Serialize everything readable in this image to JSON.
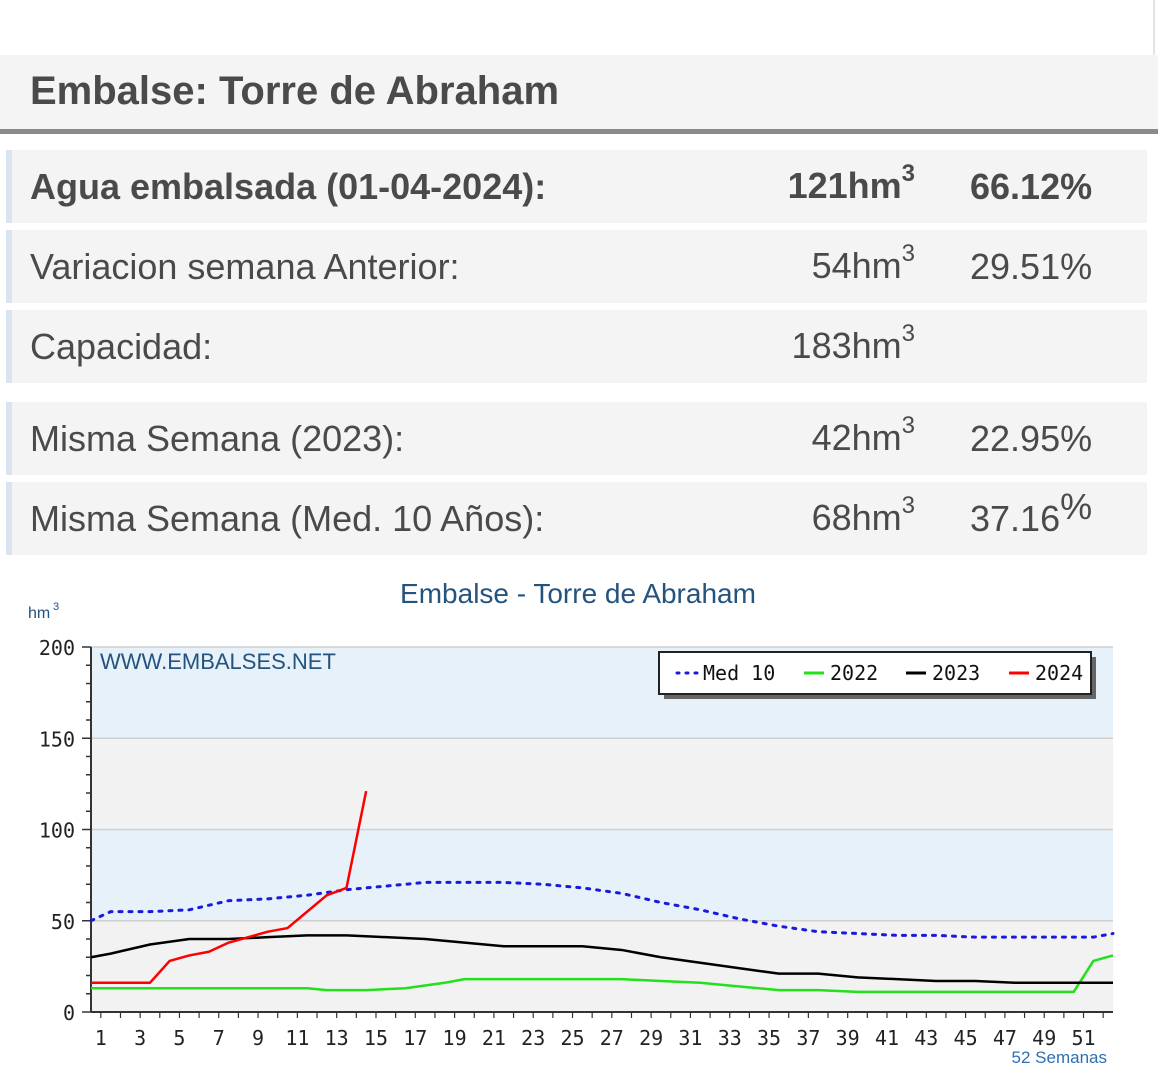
{
  "header": {
    "title": "Embalse: Torre de Abraham"
  },
  "rows": [
    {
      "label": "Agua embalsada (01-04-2024):",
      "value": "121",
      "unit": "hm",
      "exp": "3",
      "pct": "66.12",
      "pct_sym": "%"
    },
    {
      "label": "Variacion semana Anterior:",
      "value": "54",
      "unit": "hm",
      "exp": "3",
      "pct": "29.51",
      "pct_sym": "%"
    },
    {
      "label": "Capacidad:",
      "value": "183",
      "unit": "hm",
      "exp": "3",
      "pct": "",
      "pct_sym": ""
    },
    {
      "label": "Misma Semana (2023):",
      "value": "42",
      "unit": "hm",
      "exp": "3",
      "pct": "22.95",
      "pct_sym": "%"
    },
    {
      "label": "Misma Semana (Med. 10 Años):",
      "value": "68",
      "unit": "hm",
      "exp": "3",
      "pct": "37.16",
      "pct_sym": "%"
    }
  ],
  "chart_data": {
    "type": "line",
    "title": "Embalse - Torre de Abraham",
    "ylabel": "hm",
    "ylabel_exp": "3",
    "watermark": "WWW.EMBALSES.NET",
    "xlabel": "52 Semanas",
    "xlim": [
      0,
      52
    ],
    "ylim": [
      0,
      200
    ],
    "y_ticks": [
      0,
      50,
      100,
      150,
      200
    ],
    "x_ticks": [
      1,
      3,
      5,
      7,
      9,
      11,
      13,
      15,
      17,
      19,
      21,
      23,
      25,
      27,
      29,
      31,
      33,
      35,
      37,
      39,
      41,
      43,
      45,
      47,
      49,
      51
    ],
    "grid": true,
    "legend_position": "top-right",
    "colors": {
      "Med 10": "#1a1adc",
      "2022": "#22e01a",
      "2023": "#000000",
      "2024": "#ff0000"
    },
    "series": [
      {
        "name": "Med 10",
        "style": "dotted",
        "x": [
          0,
          1,
          3,
          5,
          7,
          9,
          11,
          13,
          15,
          17,
          19,
          21,
          23,
          25,
          27,
          29,
          31,
          33,
          35,
          37,
          39,
          41,
          43,
          45,
          47,
          49,
          51,
          52
        ],
        "values": [
          50,
          55,
          55,
          56,
          61,
          62,
          64,
          67,
          69,
          71,
          71,
          71,
          70,
          68,
          65,
          60,
          56,
          51,
          47,
          44,
          43,
          42,
          42,
          41,
          41,
          41,
          41,
          43
        ]
      },
      {
        "name": "2022",
        "style": "solid",
        "x": [
          0,
          3,
          6,
          9,
          11,
          12,
          14,
          16,
          18,
          19,
          21,
          23,
          25,
          27,
          29,
          31,
          33,
          35,
          37,
          39,
          41,
          43,
          45,
          47,
          49,
          50,
          51,
          52
        ],
        "values": [
          13,
          13,
          13,
          13,
          13,
          12,
          12,
          13,
          16,
          18,
          18,
          18,
          18,
          18,
          17,
          16,
          14,
          12,
          12,
          11,
          11,
          11,
          11,
          11,
          11,
          11,
          28,
          31
        ]
      },
      {
        "name": "2023",
        "style": "solid",
        "x": [
          0,
          1,
          3,
          5,
          7,
          9,
          11,
          13,
          15,
          17,
          19,
          21,
          23,
          25,
          27,
          29,
          31,
          33,
          35,
          37,
          39,
          41,
          43,
          45,
          47,
          49,
          51,
          52
        ],
        "values": [
          30,
          32,
          37,
          40,
          40,
          41,
          42,
          42,
          41,
          40,
          38,
          36,
          36,
          36,
          34,
          30,
          27,
          24,
          21,
          21,
          19,
          18,
          17,
          17,
          16,
          16,
          16,
          16
        ]
      },
      {
        "name": "2024",
        "style": "solid",
        "x": [
          0,
          1,
          2,
          3,
          4,
          5,
          6,
          7,
          8,
          9,
          10,
          11,
          12,
          13,
          14
        ],
        "values": [
          16,
          16,
          16,
          16,
          28,
          31,
          33,
          38,
          41,
          44,
          46,
          55,
          64,
          68,
          121
        ]
      }
    ]
  }
}
